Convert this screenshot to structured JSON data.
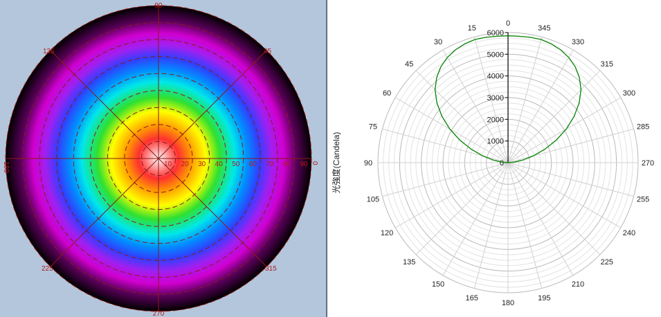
{
  "chart_data": [
    {
      "type": "heatmap",
      "title": "",
      "angle_labels": [
        "0",
        "45",
        "90",
        "135",
        "180",
        "225",
        "270",
        "315"
      ],
      "radial_labels": [
        "10",
        "20",
        "30",
        "40",
        "50",
        "60",
        "70",
        "80",
        "90"
      ],
      "radial_range": [
        0,
        90
      ],
      "colormap": [
        "#ffffff",
        "#ff3030",
        "#ffa000",
        "#ffff00",
        "#30e030",
        "#00e8e8",
        "#0090ff",
        "#3040ff",
        "#a020f0",
        "#d000d0",
        "#5a005a",
        "#000000"
      ]
    },
    {
      "type": "line",
      "title": "",
      "ylabel": "光強度(Candela)",
      "angle_labels": [
        "0",
        "15",
        "30",
        "45",
        "60",
        "75",
        "90",
        "105",
        "120",
        "135",
        "150",
        "165",
        "180",
        "195",
        "210",
        "225",
        "240",
        "255",
        "270",
        "285",
        "300",
        "315",
        "330",
        "345"
      ],
      "radial_ticks": [
        "0",
        "1000",
        "2000",
        "3000",
        "4000",
        "5000",
        "6000"
      ],
      "radial_range": [
        0,
        6000
      ],
      "series": [
        {
          "color": "#008000",
          "x": [
            0,
            5,
            10,
            15,
            20,
            25,
            30,
            35,
            40,
            45,
            50,
            55,
            60,
            65,
            70,
            75,
            80,
            85,
            90,
            270,
            275,
            280,
            285,
            290,
            295,
            300,
            305,
            310,
            315,
            320,
            325,
            330,
            335,
            340,
            345,
            350,
            355,
            360
          ],
          "y": [
            5850,
            5850,
            5870,
            5880,
            5830,
            5740,
            5600,
            5400,
            5120,
            4760,
            4280,
            3720,
            3100,
            2450,
            1800,
            1200,
            700,
            300,
            0,
            0,
            300,
            700,
            1200,
            1800,
            2450,
            3100,
            3720,
            4280,
            4760,
            5120,
            5400,
            5600,
            5740,
            5830,
            5880,
            5870,
            5850,
            5850
          ]
        }
      ]
    }
  ]
}
